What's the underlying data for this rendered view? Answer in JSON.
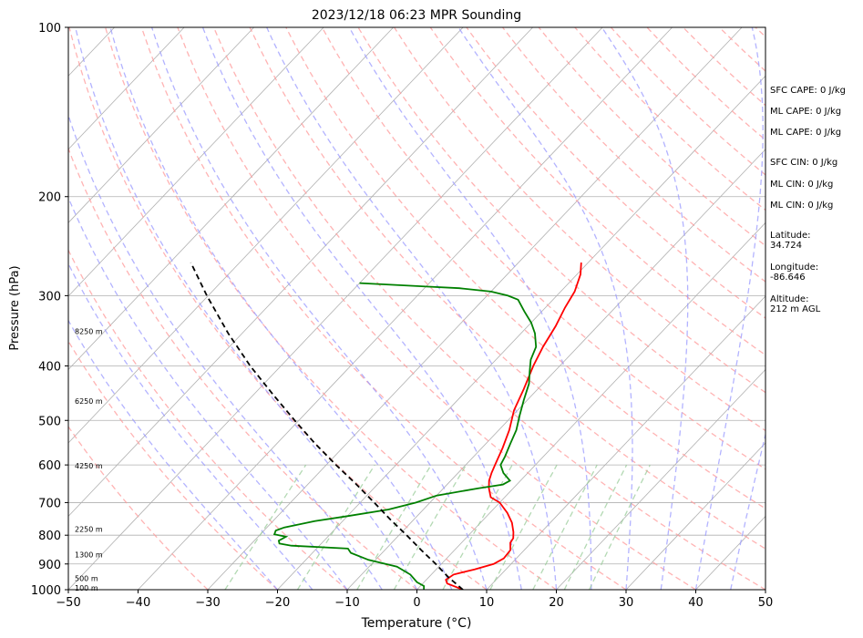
{
  "chart_data": {
    "type": "line",
    "subtype": "skew-t log-p sounding",
    "title": "2023/12/18 06:23 MPR Sounding",
    "xlabel": "Temperature (°C)",
    "ylabel": "Pressure (hPa)",
    "xlim": [
      -50,
      50
    ],
    "ylim": [
      1000,
      100
    ],
    "y_scale": "log",
    "x_ticks": [
      "−50",
      "−40",
      "−30",
      "−20",
      "−10",
      "0",
      "10",
      "20",
      "30",
      "40",
      "50"
    ],
    "y_ticks": [
      "100",
      "200",
      "300",
      "400",
      "500",
      "600",
      "700",
      "800",
      "900",
      "1000"
    ],
    "grid": true,
    "series": [
      {
        "role": "temperature",
        "color": "#ff0000",
        "points": [
          [
            1000,
            6.6
          ],
          [
            975,
            3.5
          ],
          [
            960,
            2.8
          ],
          [
            940,
            3.2
          ],
          [
            920,
            5.5
          ],
          [
            900,
            7.5
          ],
          [
            880,
            8.2
          ],
          [
            850,
            8.0
          ],
          [
            825,
            7.0
          ],
          [
            810,
            6.8
          ],
          [
            790,
            6.0
          ],
          [
            760,
            4.5
          ],
          [
            730,
            2.5
          ],
          [
            700,
            0.0
          ],
          [
            685,
            -2.0
          ],
          [
            660,
            -3.5
          ],
          [
            640,
            -4.5
          ],
          [
            620,
            -5.2
          ],
          [
            600,
            -5.8
          ],
          [
            560,
            -7.0
          ],
          [
            520,
            -8.5
          ],
          [
            480,
            -10.5
          ],
          [
            440,
            -12.0
          ],
          [
            400,
            -13.8
          ],
          [
            370,
            -15.0
          ],
          [
            340,
            -16.0
          ],
          [
            315,
            -17.2
          ],
          [
            295,
            -18.0
          ],
          [
            275,
            -19.5
          ],
          [
            262,
            -21.0
          ]
        ]
      },
      {
        "role": "dewpoint",
        "color": "#008000",
        "points": [
          [
            1000,
            1.0
          ],
          [
            985,
            0.5
          ],
          [
            970,
            -1.0
          ],
          [
            940,
            -3.0
          ],
          [
            910,
            -6.0
          ],
          [
            885,
            -11.0
          ],
          [
            860,
            -14.5
          ],
          [
            845,
            -15.5
          ],
          [
            835,
            -24.0
          ],
          [
            828,
            -26.0
          ],
          [
            818,
            -26.5
          ],
          [
            805,
            -26.0
          ],
          [
            797,
            -28.0
          ],
          [
            785,
            -28.3
          ],
          [
            775,
            -27.5
          ],
          [
            755,
            -24.0
          ],
          [
            740,
            -20.0
          ],
          [
            720,
            -15.0
          ],
          [
            700,
            -12.0
          ],
          [
            680,
            -10.0
          ],
          [
            660,
            -5.0
          ],
          [
            650,
            -2.0
          ],
          [
            640,
            -1.5
          ],
          [
            620,
            -3.5
          ],
          [
            600,
            -5.0
          ],
          [
            580,
            -5.5
          ],
          [
            550,
            -6.5
          ],
          [
            520,
            -7.5
          ],
          [
            490,
            -9.0
          ],
          [
            460,
            -10.5
          ],
          [
            430,
            -12.0
          ],
          [
            410,
            -13.5
          ],
          [
            390,
            -15.0
          ],
          [
            370,
            -16.0
          ],
          [
            350,
            -18.0
          ],
          [
            335,
            -20.0
          ],
          [
            320,
            -22.5
          ],
          [
            305,
            -25.0
          ],
          [
            300,
            -27.0
          ],
          [
            295,
            -30.0
          ],
          [
            291,
            -35.0
          ],
          [
            289,
            -40.0
          ],
          [
            285,
            -50.0
          ]
        ]
      },
      {
        "role": "parcel",
        "color": "#000000",
        "style": "dashed",
        "points": [
          [
            1000,
            6.6
          ],
          [
            950,
            2.8
          ],
          [
            900,
            -0.8
          ],
          [
            850,
            -4.8
          ],
          [
            800,
            -8.9
          ],
          [
            750,
            -13.4
          ],
          [
            700,
            -18.0
          ],
          [
            650,
            -23.0
          ],
          [
            600,
            -28.6
          ],
          [
            550,
            -34.5
          ],
          [
            500,
            -40.6
          ],
          [
            450,
            -47.2
          ],
          [
            400,
            -54.4
          ],
          [
            350,
            -62.0
          ],
          [
            300,
            -70.2
          ],
          [
            262,
            -77.0
          ]
        ]
      }
    ],
    "background_lines": {
      "isotherms_color": "#b0b0b0",
      "dry_adiabats_color": "#ff9999",
      "moist_adiabats_color": "#9999ff",
      "mixing_ratio_color": "#99cc99",
      "isobars_color": "#b0b0b0"
    },
    "height_labels": [
      {
        "p": 992,
        "text": "100 m"
      },
      {
        "p": 955,
        "text": "500 m"
      },
      {
        "p": 866,
        "text": "1300 m"
      },
      {
        "p": 780,
        "text": "2250 m"
      },
      {
        "p": 602,
        "text": "4250 m"
      },
      {
        "p": 462,
        "text": "6250 m"
      },
      {
        "p": 347,
        "text": "8250 m"
      }
    ],
    "indices": [
      "SFC CAPE: 0 J/kg",
      "ML CAPE: 0 J/kg",
      "ML CAPE: 0 J/kg",
      "SFC CIN: 0 J/kg",
      "ML CIN: 0 J/kg",
      "ML CIN: 0 J/kg"
    ],
    "location": [
      "Latitude:\n34.724",
      "Longitude:\n-86.646",
      "Altitude:\n212 m AGL"
    ]
  }
}
